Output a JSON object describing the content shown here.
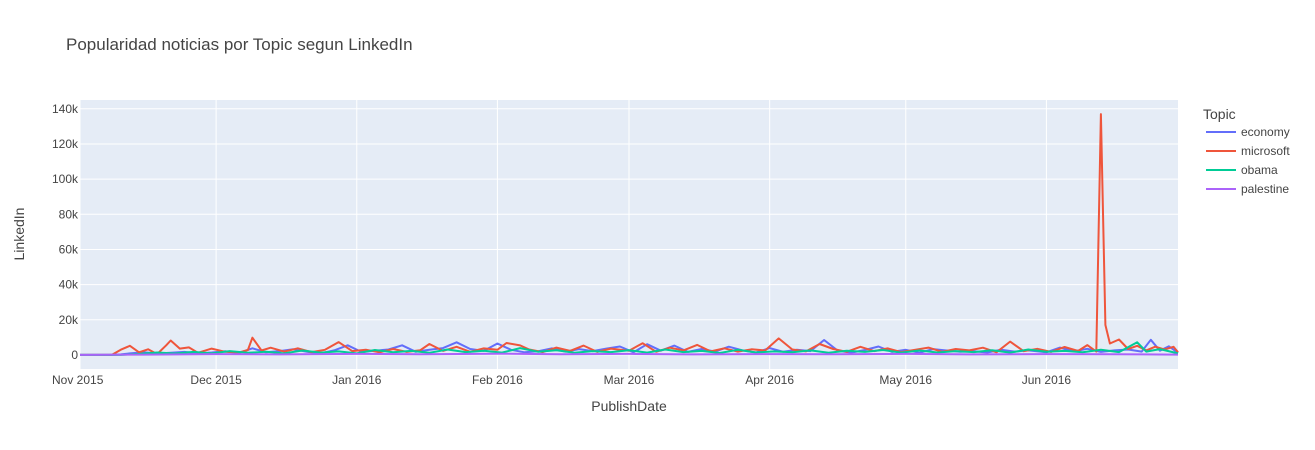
{
  "chart_data": {
    "type": "line",
    "title": "Popularidad noticias por Topic segun LinkedIn",
    "xlabel": "PublishDate",
    "ylabel": "LinkedIn",
    "legend_title": "Topic",
    "legend_position": "right",
    "grid": true,
    "xlim": [
      "2015-11-01",
      "2016-06-30"
    ],
    "ylim": [
      -8000,
      145000
    ],
    "x_ticks": [
      {
        "date": "2015-11-01",
        "label": "Nov 2015"
      },
      {
        "date": "2015-12-01",
        "label": "Dec 2015"
      },
      {
        "date": "2016-01-01",
        "label": "Jan 2016"
      },
      {
        "date": "2016-02-01",
        "label": "Feb 2016"
      },
      {
        "date": "2016-03-01",
        "label": "Mar 2016"
      },
      {
        "date": "2016-04-01",
        "label": "Apr 2016"
      },
      {
        "date": "2016-05-01",
        "label": "May 2016"
      },
      {
        "date": "2016-06-01",
        "label": "Jun 2016"
      }
    ],
    "y_ticks": [
      {
        "value": 0,
        "label": "0"
      },
      {
        "value": 20000,
        "label": "20k"
      },
      {
        "value": 40000,
        "label": "40k"
      },
      {
        "value": 60000,
        "label": "60k"
      },
      {
        "value": 80000,
        "label": "80k"
      },
      {
        "value": 100000,
        "label": "100k"
      },
      {
        "value": 120000,
        "label": "120k"
      },
      {
        "value": 140000,
        "label": "140k"
      }
    ],
    "colors": {
      "background": "#E5ECF6",
      "economy": "#636EFA",
      "microsoft": "#EF553B",
      "obama": "#00CC96",
      "palestine": "#AB63FA"
    },
    "series": [
      {
        "name": "economy",
        "color": "#636EFA",
        "points": [
          [
            "2015-11-01",
            0
          ],
          [
            "2015-11-08",
            0
          ],
          [
            "2015-11-10",
            300
          ],
          [
            "2015-11-12",
            900
          ],
          [
            "2015-11-15",
            1500
          ],
          [
            "2015-11-18",
            800
          ],
          [
            "2015-11-21",
            1200
          ],
          [
            "2015-11-24",
            1700
          ],
          [
            "2015-11-27",
            900
          ],
          [
            "2015-11-30",
            1400
          ],
          [
            "2015-12-03",
            2100
          ],
          [
            "2015-12-06",
            1100
          ],
          [
            "2015-12-09",
            3800
          ],
          [
            "2015-12-12",
            1500
          ],
          [
            "2015-12-15",
            2200
          ],
          [
            "2015-12-18",
            3200
          ],
          [
            "2015-12-21",
            1800
          ],
          [
            "2015-12-24",
            900
          ],
          [
            "2015-12-27",
            2600
          ],
          [
            "2015-12-30",
            5500
          ],
          [
            "2016-01-02",
            1700
          ],
          [
            "2016-01-05",
            2400
          ],
          [
            "2016-01-08",
            3100
          ],
          [
            "2016-01-11",
            5500
          ],
          [
            "2016-01-14",
            1800
          ],
          [
            "2016-01-17",
            2900
          ],
          [
            "2016-01-20",
            3900
          ],
          [
            "2016-01-23",
            7200
          ],
          [
            "2016-01-26",
            3400
          ],
          [
            "2016-01-29",
            2300
          ],
          [
            "2016-02-01",
            6500
          ],
          [
            "2016-02-04",
            2900
          ],
          [
            "2016-02-07",
            1500
          ],
          [
            "2016-02-10",
            2100
          ],
          [
            "2016-02-13",
            3800
          ],
          [
            "2016-02-16",
            1900
          ],
          [
            "2016-02-19",
            3300
          ],
          [
            "2016-02-22",
            2200
          ],
          [
            "2016-02-25",
            3600
          ],
          [
            "2016-02-28",
            4800
          ],
          [
            "2016-03-02",
            1500
          ],
          [
            "2016-03-05",
            6100
          ],
          [
            "2016-03-08",
            2400
          ],
          [
            "2016-03-11",
            5300
          ],
          [
            "2016-03-14",
            1700
          ],
          [
            "2016-03-17",
            3400
          ],
          [
            "2016-03-20",
            1900
          ],
          [
            "2016-03-23",
            4700
          ],
          [
            "2016-03-26",
            2600
          ],
          [
            "2016-03-29",
            1400
          ],
          [
            "2016-04-01",
            3900
          ],
          [
            "2016-04-04",
            1800
          ],
          [
            "2016-04-07",
            3000
          ],
          [
            "2016-04-10",
            2200
          ],
          [
            "2016-04-13",
            8500
          ],
          [
            "2016-04-16",
            2400
          ],
          [
            "2016-04-19",
            1300
          ],
          [
            "2016-04-22",
            2800
          ],
          [
            "2016-04-25",
            4800
          ],
          [
            "2016-04-28",
            1700
          ],
          [
            "2016-05-01",
            2900
          ],
          [
            "2016-05-04",
            1200
          ],
          [
            "2016-05-07",
            3300
          ],
          [
            "2016-05-10",
            2500
          ],
          [
            "2016-05-13",
            1800
          ],
          [
            "2016-05-16",
            2100
          ],
          [
            "2016-05-19",
            1400
          ],
          [
            "2016-05-22",
            3000
          ],
          [
            "2016-05-25",
            1900
          ],
          [
            "2016-05-28",
            2600
          ],
          [
            "2016-06-01",
            1500
          ],
          [
            "2016-06-04",
            4200
          ],
          [
            "2016-06-07",
            2000
          ],
          [
            "2016-06-10",
            3500
          ],
          [
            "2016-06-13",
            1700
          ],
          [
            "2016-06-16",
            2600
          ],
          [
            "2016-06-19",
            3100
          ],
          [
            "2016-06-22",
            1900
          ],
          [
            "2016-06-24",
            8600
          ],
          [
            "2016-06-26",
            2400
          ],
          [
            "2016-06-28",
            4900
          ],
          [
            "2016-06-30",
            1200
          ]
        ]
      },
      {
        "name": "microsoft",
        "color": "#EF553B",
        "points": [
          [
            "2015-11-01",
            0
          ],
          [
            "2015-11-08",
            0
          ],
          [
            "2015-11-10",
            3000
          ],
          [
            "2015-11-12",
            5200
          ],
          [
            "2015-11-14",
            1500
          ],
          [
            "2015-11-16",
            3200
          ],
          [
            "2015-11-18",
            500
          ],
          [
            "2015-11-20",
            5500
          ],
          [
            "2015-11-21",
            8200
          ],
          [
            "2015-11-23",
            3600
          ],
          [
            "2015-11-25",
            4300
          ],
          [
            "2015-11-27",
            1200
          ],
          [
            "2015-11-30",
            3600
          ],
          [
            "2015-12-03",
            1800
          ],
          [
            "2015-12-06",
            1300
          ],
          [
            "2015-12-08",
            2800
          ],
          [
            "2015-12-09",
            9800
          ],
          [
            "2015-12-11",
            2500
          ],
          [
            "2015-12-13",
            4100
          ],
          [
            "2015-12-16",
            1900
          ],
          [
            "2015-12-19",
            3800
          ],
          [
            "2015-12-22",
            1600
          ],
          [
            "2015-12-25",
            2900
          ],
          [
            "2015-12-28",
            7300
          ],
          [
            "2015-12-31",
            2200
          ],
          [
            "2016-01-03",
            3000
          ],
          [
            "2016-01-06",
            1500
          ],
          [
            "2016-01-09",
            3400
          ],
          [
            "2016-01-12",
            1700
          ],
          [
            "2016-01-15",
            2700
          ],
          [
            "2016-01-17",
            6200
          ],
          [
            "2016-01-20",
            2300
          ],
          [
            "2016-01-23",
            4600
          ],
          [
            "2016-01-26",
            1800
          ],
          [
            "2016-01-29",
            3700
          ],
          [
            "2016-02-01",
            2900
          ],
          [
            "2016-02-03",
            6800
          ],
          [
            "2016-02-06",
            5400
          ],
          [
            "2016-02-08",
            3100
          ],
          [
            "2016-02-11",
            1600
          ],
          [
            "2016-02-14",
            4200
          ],
          [
            "2016-02-17",
            2300
          ],
          [
            "2016-02-20",
            5300
          ],
          [
            "2016-02-23",
            1700
          ],
          [
            "2016-02-26",
            3600
          ],
          [
            "2016-03-01",
            2400
          ],
          [
            "2016-03-04",
            6700
          ],
          [
            "2016-03-07",
            1800
          ],
          [
            "2016-03-10",
            4100
          ],
          [
            "2016-03-13",
            2600
          ],
          [
            "2016-03-16",
            5700
          ],
          [
            "2016-03-19",
            2000
          ],
          [
            "2016-03-22",
            3800
          ],
          [
            "2016-03-25",
            1900
          ],
          [
            "2016-03-28",
            3200
          ],
          [
            "2016-03-31",
            2500
          ],
          [
            "2016-04-03",
            9400
          ],
          [
            "2016-04-06",
            3100
          ],
          [
            "2016-04-09",
            2000
          ],
          [
            "2016-04-12",
            6200
          ],
          [
            "2016-04-15",
            3400
          ],
          [
            "2016-04-18",
            1800
          ],
          [
            "2016-04-21",
            4600
          ],
          [
            "2016-04-24",
            2200
          ],
          [
            "2016-04-27",
            3700
          ],
          [
            "2016-04-30",
            1600
          ],
          [
            "2016-05-03",
            2900
          ],
          [
            "2016-05-06",
            4200
          ],
          [
            "2016-05-09",
            1800
          ],
          [
            "2016-05-12",
            3400
          ],
          [
            "2016-05-15",
            2600
          ],
          [
            "2016-05-18",
            4100
          ],
          [
            "2016-05-21",
            1500
          ],
          [
            "2016-05-24",
            7600
          ],
          [
            "2016-05-27",
            2100
          ],
          [
            "2016-05-30",
            3500
          ],
          [
            "2016-06-02",
            1700
          ],
          [
            "2016-06-05",
            4500
          ],
          [
            "2016-06-08",
            2300
          ],
          [
            "2016-06-10",
            5600
          ],
          [
            "2016-06-12",
            1900
          ],
          [
            "2016-06-13",
            137000
          ],
          [
            "2016-06-14",
            17000
          ],
          [
            "2016-06-15",
            6500
          ],
          [
            "2016-06-17",
            8800
          ],
          [
            "2016-06-19",
            3400
          ],
          [
            "2016-06-21",
            5200
          ],
          [
            "2016-06-23",
            2600
          ],
          [
            "2016-06-25",
            4700
          ],
          [
            "2016-06-27",
            3100
          ],
          [
            "2016-06-29",
            4600
          ],
          [
            "2016-06-30",
            1500
          ]
        ]
      },
      {
        "name": "obama",
        "color": "#00CC96",
        "points": [
          [
            "2015-11-01",
            0
          ],
          [
            "2015-11-10",
            0
          ],
          [
            "2015-11-14",
            600
          ],
          [
            "2015-11-18",
            1400
          ],
          [
            "2015-11-22",
            800
          ],
          [
            "2015-11-26",
            1700
          ],
          [
            "2015-11-30",
            900
          ],
          [
            "2015-12-04",
            2200
          ],
          [
            "2015-12-08",
            1200
          ],
          [
            "2015-12-12",
            1800
          ],
          [
            "2015-12-16",
            900
          ],
          [
            "2015-12-20",
            2500
          ],
          [
            "2015-12-24",
            1300
          ],
          [
            "2015-12-28",
            2000
          ],
          [
            "2016-01-01",
            900
          ],
          [
            "2016-01-05",
            2800
          ],
          [
            "2016-01-09",
            1500
          ],
          [
            "2016-01-13",
            2300
          ],
          [
            "2016-01-17",
            1200
          ],
          [
            "2016-01-21",
            3100
          ],
          [
            "2016-01-25",
            1600
          ],
          [
            "2016-01-29",
            2400
          ],
          [
            "2016-02-02",
            1300
          ],
          [
            "2016-02-06",
            3900
          ],
          [
            "2016-02-10",
            1800
          ],
          [
            "2016-02-14",
            2700
          ],
          [
            "2016-02-18",
            1200
          ],
          [
            "2016-02-22",
            2200
          ],
          [
            "2016-02-26",
            1600
          ],
          [
            "2016-03-01",
            2700
          ],
          [
            "2016-03-05",
            1300
          ],
          [
            "2016-03-09",
            3100
          ],
          [
            "2016-03-13",
            1600
          ],
          [
            "2016-03-17",
            2300
          ],
          [
            "2016-03-21",
            1100
          ],
          [
            "2016-03-25",
            2900
          ],
          [
            "2016-03-29",
            1400
          ],
          [
            "2016-04-02",
            2000
          ],
          [
            "2016-04-06",
            1500
          ],
          [
            "2016-04-10",
            2600
          ],
          [
            "2016-04-14",
            1200
          ],
          [
            "2016-04-18",
            2400
          ],
          [
            "2016-04-22",
            1700
          ],
          [
            "2016-04-26",
            2800
          ],
          [
            "2016-04-30",
            1300
          ],
          [
            "2016-05-04",
            2500
          ],
          [
            "2016-05-08",
            1400
          ],
          [
            "2016-05-12",
            2200
          ],
          [
            "2016-05-16",
            1600
          ],
          [
            "2016-05-20",
            2700
          ],
          [
            "2016-05-24",
            1300
          ],
          [
            "2016-05-28",
            3100
          ],
          [
            "2016-06-01",
            1800
          ],
          [
            "2016-06-05",
            2300
          ],
          [
            "2016-06-09",
            1500
          ],
          [
            "2016-06-13",
            3000
          ],
          [
            "2016-06-17",
            1600
          ],
          [
            "2016-06-21",
            7200
          ],
          [
            "2016-06-23",
            1900
          ],
          [
            "2016-06-26",
            3300
          ],
          [
            "2016-06-30",
            900
          ]
        ]
      },
      {
        "name": "palestine",
        "color": "#AB63FA",
        "points": [
          [
            "2015-11-01",
            0
          ],
          [
            "2015-11-15",
            200
          ],
          [
            "2015-12-01",
            500
          ],
          [
            "2015-12-15",
            300
          ],
          [
            "2016-01-01",
            600
          ],
          [
            "2016-01-15",
            400
          ],
          [
            "2016-02-01",
            700
          ],
          [
            "2016-02-15",
            350
          ],
          [
            "2016-03-01",
            600
          ],
          [
            "2016-03-15",
            300
          ],
          [
            "2016-04-01",
            500
          ],
          [
            "2016-04-15",
            400
          ],
          [
            "2016-05-01",
            600
          ],
          [
            "2016-05-15",
            300
          ],
          [
            "2016-06-01",
            500
          ],
          [
            "2016-06-15",
            400
          ],
          [
            "2016-06-30",
            200
          ]
        ]
      }
    ]
  }
}
